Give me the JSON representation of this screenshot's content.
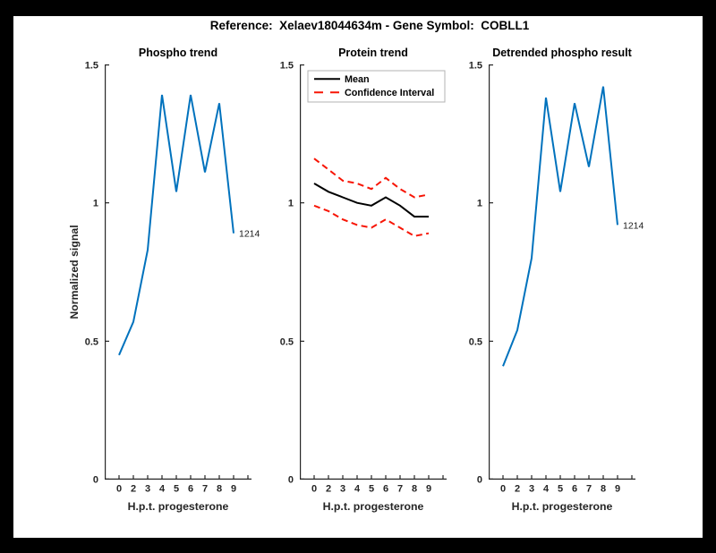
{
  "figure": {
    "title": "Reference:  Xelaev18044634m - Gene Symbol:  COBLL1",
    "background_color": "#ffffff",
    "frame_color": "#000000",
    "axis_color": "#262626"
  },
  "colors": {
    "line_blue": "#0072BD",
    "ci_red": "#F71505",
    "mean_black": "#000000",
    "legend_border": "#b3b3b3"
  },
  "chart_data": [
    {
      "type": "line",
      "title": "Phospho trend",
      "xlabel": "H.p.t. progesterone",
      "ylabel": "Normalized signal",
      "ylim": [
        0,
        1.5
      ],
      "y_ticks": [
        0,
        0.5,
        1,
        1.5
      ],
      "y_tick_labels": [
        "0",
        "0.5",
        "1",
        "1.5"
      ],
      "x_tick_labels": [
        "0",
        "2",
        "3",
        "4",
        "5",
        "6",
        "7",
        "8",
        "9"
      ],
      "n_x_ticks": 10,
      "grid": false,
      "series": [
        {
          "name": "phospho-signal",
          "color": "#0072BD",
          "style": "solid",
          "values": [
            0.45,
            0.57,
            0.83,
            1.39,
            1.04,
            1.39,
            1.11,
            1.36,
            0.89
          ]
        }
      ],
      "annotation": {
        "text": "1214",
        "series": 0,
        "point_index": 8
      }
    },
    {
      "type": "line",
      "title": "Protein trend",
      "xlabel": "H.p.t. progesterone",
      "ylabel": "",
      "ylim": [
        0,
        1.5
      ],
      "y_ticks": [
        0,
        0.5,
        1,
        1.5
      ],
      "y_tick_labels": [
        "0",
        "0.5",
        "1",
        "1.5"
      ],
      "x_tick_labels": [
        "0",
        "2",
        "3",
        "4",
        "5",
        "6",
        "7",
        "8",
        "9"
      ],
      "n_x_ticks": 10,
      "grid": false,
      "series": [
        {
          "name": "confidence-upper",
          "color": "#F71505",
          "style": "dashed",
          "values": [
            1.16,
            1.12,
            1.08,
            1.07,
            1.05,
            1.09,
            1.05,
            1.02,
            1.03
          ]
        },
        {
          "name": "confidence-lower",
          "color": "#F71505",
          "style": "dashed",
          "values": [
            0.99,
            0.97,
            0.94,
            0.92,
            0.91,
            0.94,
            0.91,
            0.88,
            0.89
          ]
        },
        {
          "name": "mean",
          "color": "#000000",
          "style": "solid",
          "values": [
            1.07,
            1.04,
            1.02,
            1.0,
            0.99,
            1.02,
            0.99,
            0.95,
            0.95
          ]
        }
      ],
      "legend": {
        "position": "top-left",
        "entries": [
          {
            "label": "Mean",
            "color": "#000000",
            "style": "solid"
          },
          {
            "label": "Confidence Interval",
            "color": "#F71505",
            "style": "dashed"
          }
        ]
      }
    },
    {
      "type": "line",
      "title": "Detrended phospho result",
      "xlabel": "H.p.t. progesterone",
      "ylabel": "",
      "ylim": [
        0,
        1.5
      ],
      "y_ticks": [
        0,
        0.5,
        1,
        1.5
      ],
      "y_tick_labels": [
        "0",
        "0.5",
        "1",
        "1.5"
      ],
      "x_tick_labels": [
        "0",
        "2",
        "3",
        "4",
        "5",
        "6",
        "7",
        "8",
        "9"
      ],
      "n_x_ticks": 10,
      "grid": false,
      "series": [
        {
          "name": "detrended-phospho-signal",
          "color": "#0072BD",
          "style": "solid",
          "values": [
            0.41,
            0.54,
            0.8,
            1.38,
            1.04,
            1.36,
            1.13,
            1.42,
            0.92
          ]
        }
      ],
      "annotation": {
        "text": "1214",
        "series": 0,
        "point_index": 8
      }
    }
  ]
}
